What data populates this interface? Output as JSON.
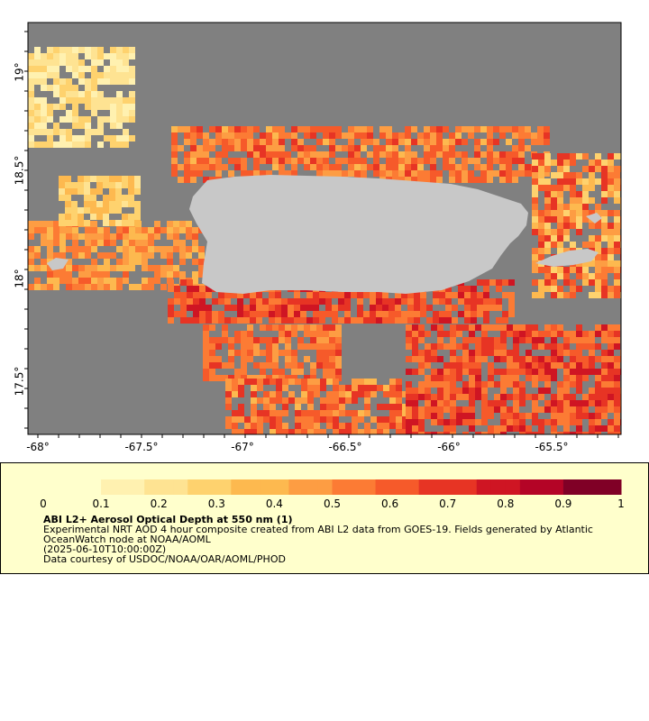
{
  "map": {
    "x_axis_labels": [
      "-68°",
      "-67.5°",
      "-67°",
      "-66.5°",
      "-66°",
      "-65.5°"
    ],
    "y_axis_labels": [
      "19°",
      "18.5°",
      "18°",
      "17.5°"
    ],
    "extent": {
      "lon_min": -68.05,
      "lon_max": -65.2,
      "lat_min": 17.27,
      "lat_max": 19.25
    },
    "colors": {
      "no_data": "#808080",
      "land": "#c8c8c8",
      "frame": "#000000"
    }
  },
  "colorbar": {
    "tick_labels": [
      "0",
      "0.1",
      "0.2",
      "0.3",
      "0.4",
      "0.5",
      "0.6",
      "0.7",
      "0.8",
      "0.9",
      "1"
    ],
    "range": [
      0,
      1
    ],
    "colors": [
      "#ffffcc",
      "#fff1b0",
      "#fee392",
      "#fed26e",
      "#fdb94f",
      "#fd9d43",
      "#fc7b34",
      "#f65a2a",
      "#e73424",
      "#cf1523",
      "#b40426",
      "#800026"
    ]
  },
  "legend": {
    "title": "ABI L2+ Aerosol Optical Depth at 550 nm (1)",
    "line1": "Experimental NRT AOD 4 hour composite created from ABI L2 data from GOES-19. Fields generated by Atlantic OceanWatch node at NOAA/AOML",
    "line2": "(2025-06-10T10:00:00Z)",
    "line3": "Data courtesy of USDOC/NOAA/OAR/AOML/PHOD"
  }
}
